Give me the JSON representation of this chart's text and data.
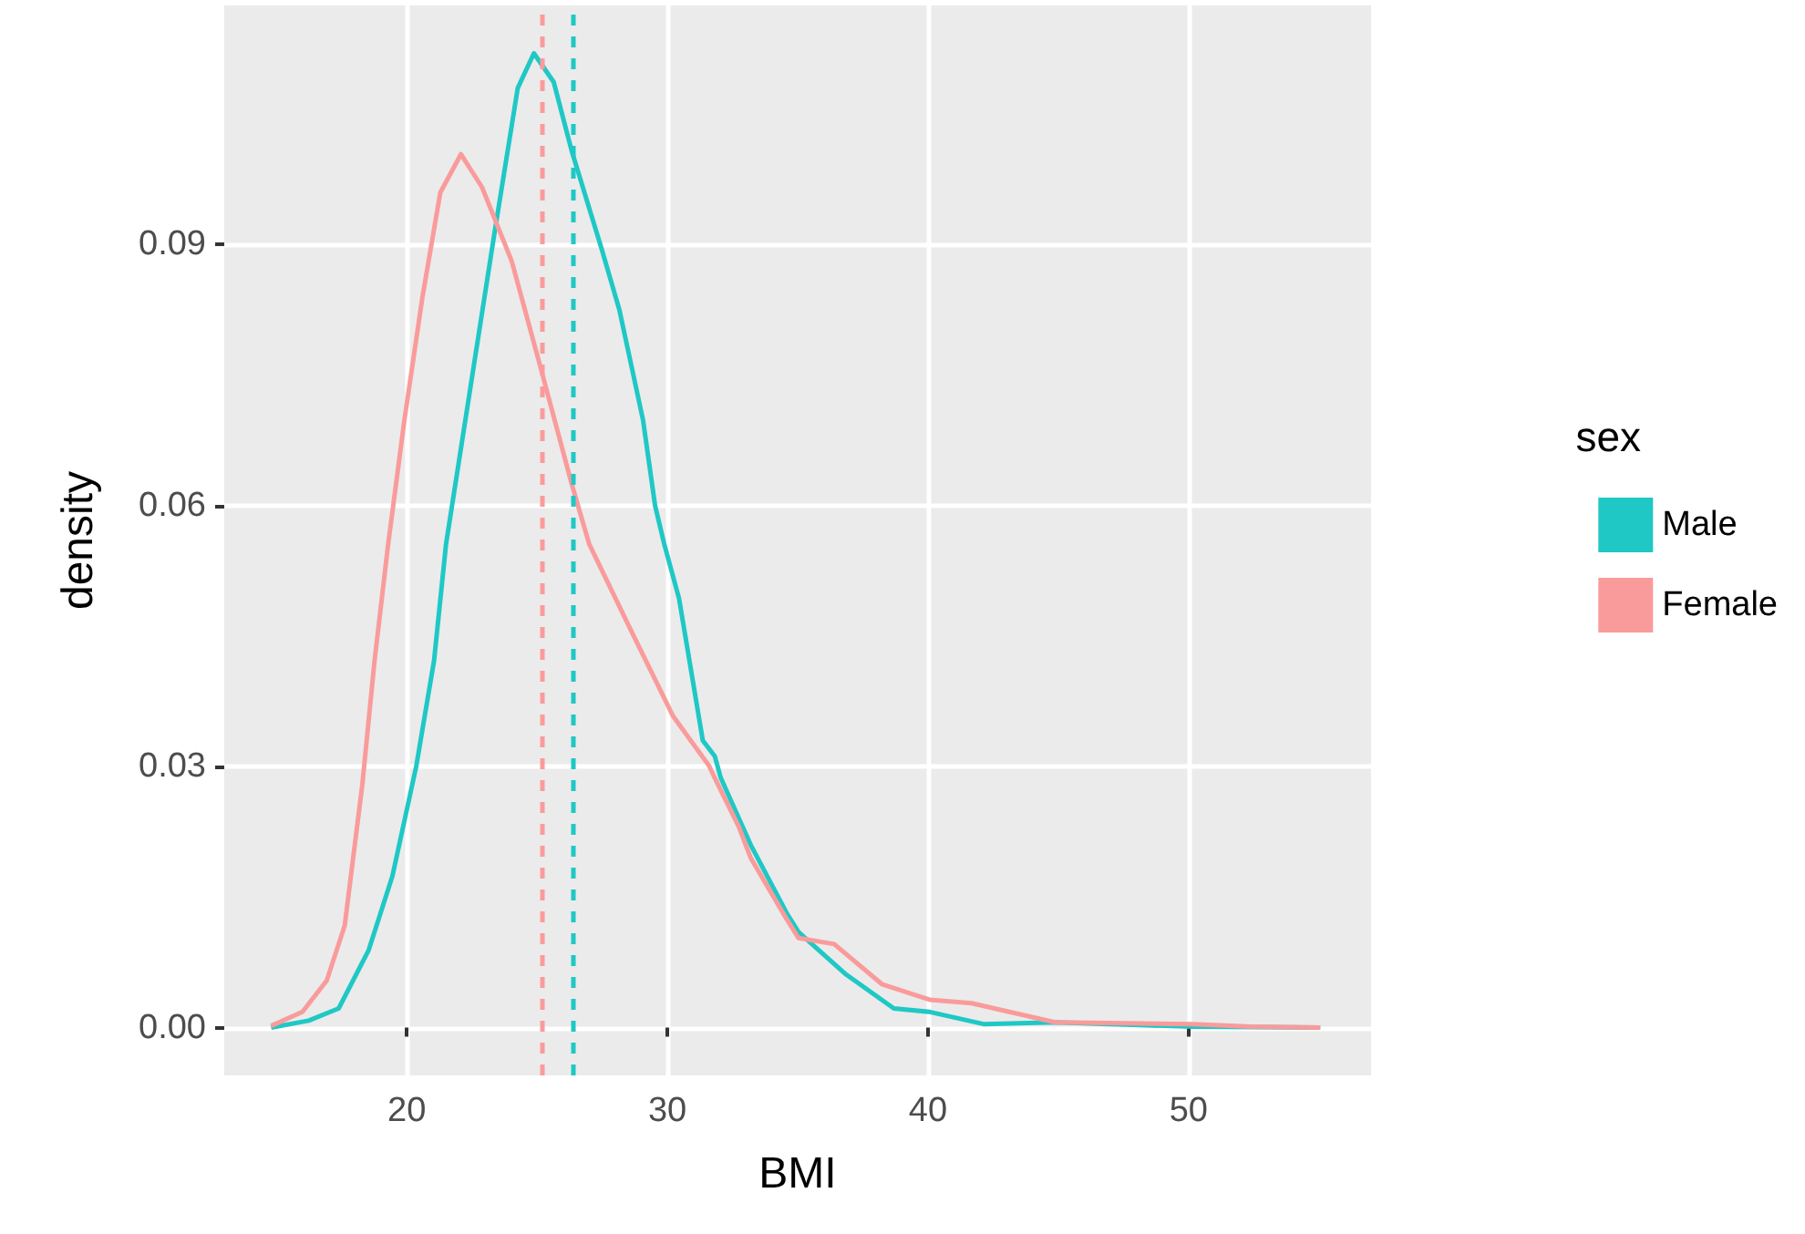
{
  "chart_data": {
    "type": "line",
    "xlabel": "BMI",
    "ylabel": "density",
    "legend_title": "sex",
    "xlim": [
      13,
      57
    ],
    "ylim": [
      -0.0055,
      0.1175
    ],
    "xticks": [
      20,
      30,
      40,
      50
    ],
    "yticks": [
      {
        "value": 0,
        "label": "0.00"
      },
      {
        "value": 0.03,
        "label": "0.03"
      },
      {
        "value": 0.06,
        "label": "0.06"
      },
      {
        "value": 0.09,
        "label": "0.09"
      }
    ],
    "grid": true,
    "legend": "right",
    "marker": "none",
    "line_style": "solid",
    "series": [
      {
        "name": "Male",
        "color": "#1fc8c5",
        "x": [
          14.8,
          16.24,
          17.39,
          18.54,
          19.45,
          20.37,
          21.05,
          21.51,
          22.43,
          23.35,
          24.26,
          24.88,
          25.64,
          26.32,
          27.47,
          28.16,
          29.07,
          29.53,
          29.88,
          30.45,
          31.36,
          31.82,
          32.05,
          33.2,
          34.57,
          35.03,
          36.86,
          38.69,
          40.07,
          42.13,
          44.88,
          50.15,
          55.05
        ],
        "values": [
          0,
          0.0008,
          0.0022,
          0.0089,
          0.0174,
          0.0301,
          0.0422,
          0.0556,
          0.0733,
          0.091,
          0.108,
          0.112,
          0.1087,
          0.1009,
          0.0896,
          0.0825,
          0.0698,
          0.06,
          0.0556,
          0.0493,
          0.033,
          0.0312,
          0.0287,
          0.021,
          0.0132,
          0.011,
          0.0061,
          0.0022,
          0.0018,
          0.0004,
          0.0006,
          0.0001,
          0
        ]
      },
      {
        "name": "Female",
        "color": "#fa9b9b",
        "x": [
          14.8,
          16.0,
          16.93,
          17.62,
          18.3,
          18.76,
          19.29,
          19.91,
          20.6,
          21.29,
          22.08,
          22.89,
          24.03,
          25.18,
          26.32,
          27.0,
          28.6,
          30.22,
          31.6,
          31.82,
          32.74,
          33.2,
          34.57,
          35.03,
          36.4,
          38.23,
          40.07,
          41.67,
          44.88,
          50.15,
          52.4,
          55.05
        ],
        "values": [
          0.0002,
          0.0018,
          0.0054,
          0.0117,
          0.028,
          0.042,
          0.0556,
          0.0698,
          0.0839,
          0.096,
          0.1004,
          0.0966,
          0.0881,
          0.0754,
          0.0626,
          0.0556,
          0.0457,
          0.0358,
          0.0301,
          0.0287,
          0.0231,
          0.0195,
          0.0125,
          0.0103,
          0.0096,
          0.005,
          0.0032,
          0.0028,
          0.0006,
          0.0004,
          0.0001,
          0
        ]
      }
    ],
    "ref_lines": [
      {
        "axis": "x",
        "value": 26.4,
        "color": "#1fc8c5",
        "line_style": "dashed"
      },
      {
        "axis": "x",
        "value": 25.2,
        "color": "#fa9b9b",
        "line_style": "dashed"
      }
    ]
  }
}
